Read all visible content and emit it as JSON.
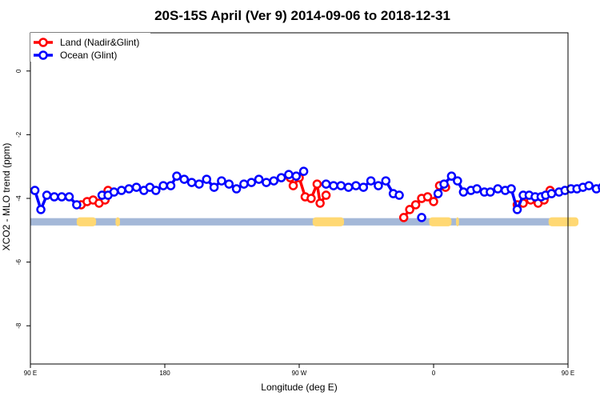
{
  "chart_data": {
    "type": "line",
    "title": "20S-15S April (Ver 9)   2014-09-06 to 2018-12-31",
    "xlabel": "Longitude (deg E)",
    "ylabel": "XCO2 - MLO trend (ppm)",
    "xlim": [
      90,
      450
    ],
    "ylim": [
      -9.2,
      1.2
    ],
    "x_ticks": [
      {
        "value": 90,
        "label": "90 E"
      },
      {
        "value": 180,
        "label": "180"
      },
      {
        "value": 270,
        "label": "90 W"
      },
      {
        "value": 360,
        "label": "0"
      },
      {
        "value": 450,
        "label": "90 E"
      },
      {
        "value": 540,
        "label": "180"
      }
    ],
    "y_ticks": [
      0,
      -2,
      -4,
      -6,
      -8
    ],
    "grid": false,
    "legend_position": "top-left",
    "colors": {
      "land": "#ff0000",
      "ocean": "#0000ff",
      "ocean_band": "#a4b8d8",
      "land_band": "#ffd873"
    },
    "series": [
      {
        "name": "Land (Nadir&Glint)",
        "color": "#ff0000",
        "segments": [
          [
            [
              124,
              -4.2
            ],
            [
              128,
              -4.1
            ],
            [
              132,
              -4.05
            ],
            [
              136,
              -4.15
            ],
            [
              140,
              -4.05
            ],
            [
              142,
              -3.75
            ]
          ],
          [
            [
              264,
              -3.35
            ],
            [
              266,
              -3.6
            ],
            [
              270,
              -3.35
            ],
            [
              274,
              -3.95
            ],
            [
              278,
              -4.0
            ],
            [
              282,
              -3.55
            ],
            [
              284,
              -4.15
            ],
            [
              288,
              -3.9
            ]
          ],
          [
            [
              340,
              -4.6
            ],
            [
              344,
              -4.35
            ],
            [
              348,
              -4.2
            ],
            [
              352,
              -4.0
            ],
            [
              356,
              -3.95
            ],
            [
              360,
              -4.1
            ],
            [
              364,
              -3.6
            ],
            [
              368,
              -3.65
            ]
          ],
          [
            [
              416,
              -4.2
            ],
            [
              420,
              -4.15
            ],
            [
              425,
              -4.05
            ],
            [
              430,
              -4.15
            ],
            [
              434,
              -4.05
            ],
            [
              438,
              -3.75
            ]
          ]
        ]
      },
      {
        "name": "Ocean (Glint)",
        "color": "#0000ff",
        "segments": [
          [
            [
              93,
              -3.75
            ],
            [
              97,
              -4.35
            ],
            [
              101,
              -3.9
            ],
            [
              106,
              -3.95
            ],
            [
              111,
              -3.95
            ],
            [
              116,
              -3.95
            ],
            [
              121,
              -4.2
            ]
          ],
          [
            [
              138,
              -3.9
            ],
            [
              142,
              -3.9
            ],
            [
              146,
              -3.8
            ],
            [
              151,
              -3.75
            ],
            [
              156,
              -3.7
            ],
            [
              161,
              -3.65
            ],
            [
              166,
              -3.75
            ],
            [
              170,
              -3.65
            ],
            [
              174,
              -3.75
            ],
            [
              179,
              -3.6
            ],
            [
              184,
              -3.6
            ],
            [
              188,
              -3.3
            ],
            [
              193,
              -3.4
            ],
            [
              198,
              -3.5
            ],
            [
              203,
              -3.55
            ],
            [
              208,
              -3.4
            ],
            [
              213,
              -3.65
            ],
            [
              218,
              -3.45
            ],
            [
              223,
              -3.55
            ],
            [
              228,
              -3.7
            ],
            [
              233,
              -3.55
            ],
            [
              238,
              -3.5
            ],
            [
              243,
              -3.4
            ],
            [
              248,
              -3.5
            ],
            [
              253,
              -3.45
            ],
            [
              258,
              -3.35
            ],
            [
              263,
              -3.25
            ],
            [
              268,
              -3.3
            ],
            [
              273,
              -3.15
            ]
          ],
          [
            [
              288,
              -3.55
            ],
            [
              293,
              -3.6
            ],
            [
              298,
              -3.6
            ],
            [
              303,
              -3.65
            ],
            [
              308,
              -3.6
            ],
            [
              313,
              -3.65
            ],
            [
              318,
              -3.45
            ],
            [
              323,
              -3.6
            ],
            [
              328,
              -3.45
            ],
            [
              333,
              -3.85
            ],
            [
              337,
              -3.9
            ]
          ],
          [
            [
              352,
              -4.6
            ]
          ],
          [
            [
              363,
              -3.85
            ],
            [
              367,
              -3.55
            ],
            [
              372,
              -3.3
            ],
            [
              376,
              -3.45
            ],
            [
              380,
              -3.8
            ],
            [
              385,
              -3.75
            ],
            [
              389,
              -3.7
            ],
            [
              394,
              -3.8
            ],
            [
              398,
              -3.8
            ],
            [
              403,
              -3.7
            ],
            [
              408,
              -3.75
            ],
            [
              412,
              -3.7
            ],
            [
              416,
              -4.35
            ],
            [
              420,
              -3.9
            ],
            [
              424,
              -3.9
            ],
            [
              428,
              -3.95
            ],
            [
              432,
              -3.95
            ]
          ],
          [
            [
              435,
              -3.9
            ],
            [
              439,
              -3.85
            ],
            [
              444,
              -3.8
            ],
            [
              448,
              -3.75
            ],
            [
              452,
              -3.7
            ],
            [
              456,
              -3.7
            ],
            [
              460,
              -3.65
            ],
            [
              464,
              -3.6
            ],
            [
              469,
              -3.7
            ],
            [
              473,
              -3.65
            ]
          ]
        ]
      }
    ],
    "surface_band": {
      "y_range": [
        -4.85,
        -4.62
      ],
      "ocean": [
        [
          90,
          450
        ]
      ],
      "land": [
        [
          121,
          134
        ],
        [
          147,
          150
        ],
        [
          279,
          300
        ],
        [
          357,
          372
        ],
        [
          375,
          377
        ],
        [
          437,
          457
        ]
      ]
    }
  }
}
